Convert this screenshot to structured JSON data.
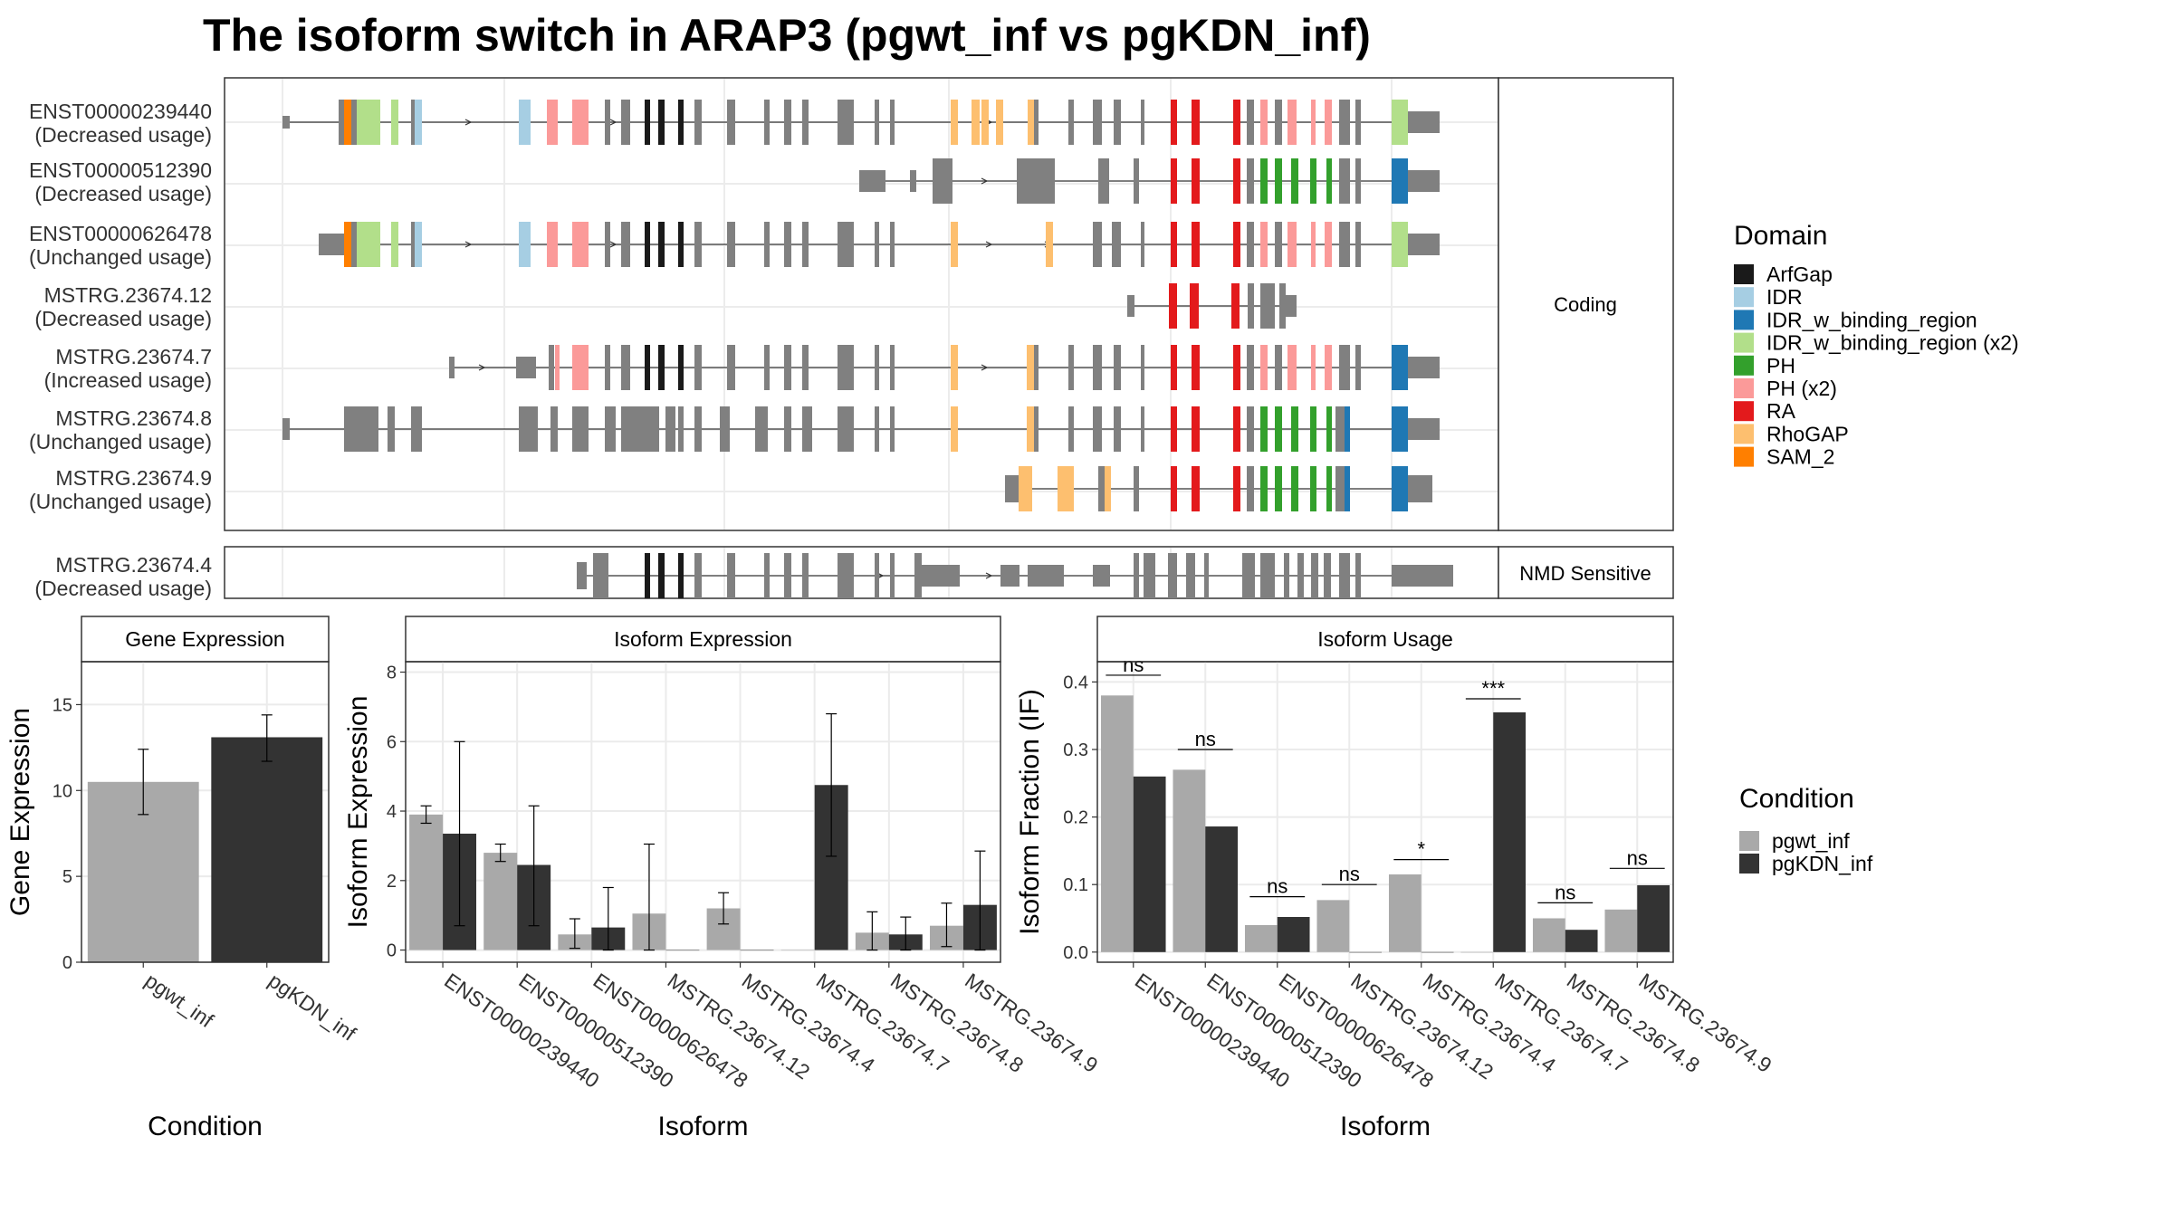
{
  "title": "The isoform switch in ARAP3 (pgwt_inf vs pgKDN_inf)",
  "colors": {
    "ArfGap": "#1a1a1a",
    "IDR": "#a6cee3",
    "IDR_w_binding_region": "#1f78b4",
    "IDR_w_binding_region (x2)": "#b2df8a",
    "PH": "#33a02c",
    "PH (x2)": "#fb9a99",
    "RA": "#e31a1c",
    "RhoGAP": "#fdbf6f",
    "SAM_2": "#ff7f00",
    "exon": "#808080",
    "pgwt_inf": "#a9a9a9",
    "pgKDN_inf": "#333333"
  },
  "panels": {
    "coding_label": "Coding",
    "nmd_label": "NMD Sensitive"
  },
  "legend_domain": {
    "title": "Domain",
    "items": [
      "ArfGap",
      "IDR",
      "IDR_w_binding_region",
      "IDR_w_binding_region (x2)",
      "PH",
      "PH (x2)",
      "RA",
      "RhoGAP",
      "SAM_2"
    ]
  },
  "legend_condition": {
    "title": "Condition",
    "items": [
      "pgwt_inf",
      "pgKDN_inf"
    ]
  },
  "transcripts": [
    {
      "id": "ENST00000239440",
      "usage": "(Decreased usage)",
      "group": "coding"
    },
    {
      "id": "ENST00000512390",
      "usage": "(Decreased usage)",
      "group": "coding"
    },
    {
      "id": "ENST00000626478",
      "usage": "(Unchanged usage)",
      "group": "coding"
    },
    {
      "id": "MSTRG.23674.12",
      "usage": "(Decreased usage)",
      "group": "coding"
    },
    {
      "id": "MSTRG.23674.7",
      "usage": "(Increased usage)",
      "group": "coding"
    },
    {
      "id": "MSTRG.23674.8",
      "usage": "(Unchanged usage)",
      "group": "coding"
    },
    {
      "id": "MSTRG.23674.9",
      "usage": "(Unchanged usage)",
      "group": "coding"
    },
    {
      "id": "MSTRG.23674.4",
      "usage": "(Decreased usage)",
      "group": "nmd"
    }
  ],
  "chart_data": [
    {
      "type": "bar",
      "title": "Gene Expression",
      "xlabel": "Condition",
      "ylabel": "Gene Expression",
      "categories": [
        "pgwt_inf",
        "pgKDN_inf"
      ],
      "values": [
        10.5,
        13.1
      ],
      "error_low": [
        8.6,
        11.7
      ],
      "error_high": [
        12.4,
        14.4
      ],
      "ylim": [
        0,
        17.5
      ],
      "yticks": [
        0,
        5,
        10,
        15
      ]
    },
    {
      "type": "bar",
      "title": "Isoform Expression",
      "xlabel": "Isoform",
      "ylabel": "Isoform Expression",
      "categories": [
        "ENST00000239440",
        "ENST00000512390",
        "ENST00000626478",
        "MSTRG.23674.12",
        "MSTRG.23674.4",
        "MSTRG.23674.7",
        "MSTRG.23674.8",
        "MSTRG.23674.9"
      ],
      "series": [
        {
          "name": "pgwt_inf",
          "values": [
            3.9,
            2.8,
            0.45,
            1.05,
            1.2,
            0.0,
            0.5,
            0.7
          ],
          "error_low": [
            3.65,
            2.55,
            0.05,
            0.0,
            0.75,
            0.0,
            0.0,
            0.1
          ],
          "error_high": [
            4.15,
            3.05,
            0.9,
            3.05,
            1.65,
            0.0,
            1.1,
            1.35
          ]
        },
        {
          "name": "pgKDN_inf",
          "values": [
            3.35,
            2.45,
            0.65,
            0.0,
            0.0,
            4.75,
            0.45,
            1.3
          ],
          "error_low": [
            0.7,
            0.7,
            0.0,
            0.0,
            0.0,
            2.7,
            0.0,
            0.0
          ],
          "error_high": [
            6.0,
            4.15,
            1.8,
            0.0,
            0.0,
            6.8,
            0.95,
            2.85
          ]
        }
      ],
      "ylim": [
        -0.35,
        8.3
      ],
      "yticks": [
        0,
        2,
        4,
        6,
        8
      ]
    },
    {
      "type": "bar",
      "title": "Isoform Usage",
      "xlabel": "Isoform",
      "ylabel": "Isoform Fraction (IF)",
      "categories": [
        "ENST00000239440",
        "ENST00000512390",
        "ENST00000626478",
        "MSTRG.23674.12",
        "MSTRG.23674.4",
        "MSTRG.23674.7",
        "MSTRG.23674.8",
        "MSTRG.23674.9"
      ],
      "series": [
        {
          "name": "pgwt_inf",
          "values": [
            0.38,
            0.27,
            0.04,
            0.077,
            0.115,
            0.0,
            0.05,
            0.063
          ]
        },
        {
          "name": "pgKDN_inf",
          "values": [
            0.26,
            0.186,
            0.052,
            0.0,
            0.0,
            0.355,
            0.033,
            0.099
          ]
        }
      ],
      "significance": [
        "ns",
        "ns",
        "ns",
        "ns",
        "*",
        "***",
        "ns",
        "ns"
      ],
      "sig_level": [
        0.41,
        0.3,
        0.082,
        0.1,
        0.137,
        0.375,
        0.073,
        0.124
      ],
      "ylim": [
        -0.015,
        0.43
      ],
      "yticks": [
        0.0,
        0.1,
        0.2,
        0.3,
        0.4
      ]
    }
  ]
}
